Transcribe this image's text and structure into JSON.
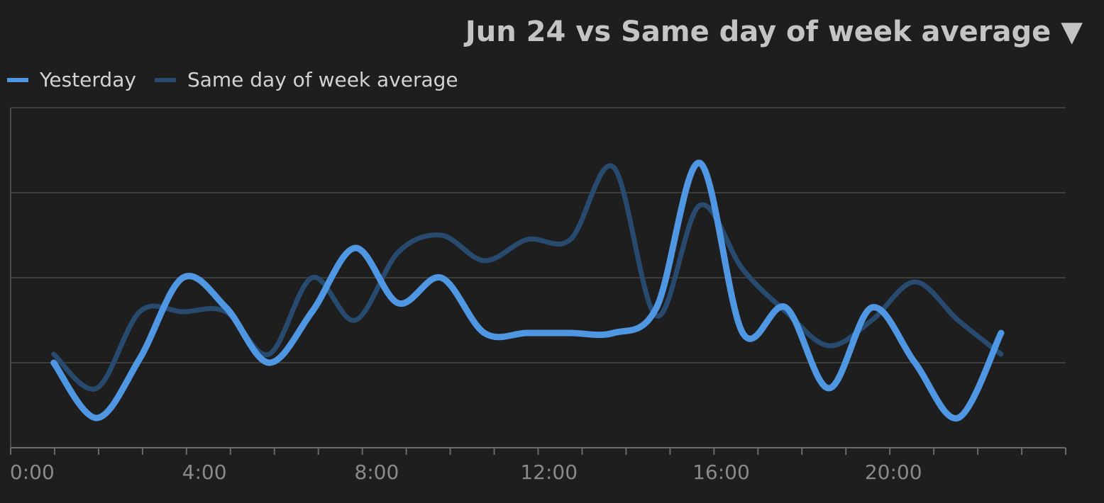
{
  "header": {
    "title": "Jun 24 vs Same day of week average",
    "dropdown_icon": "▼"
  },
  "legend": [
    {
      "label": "Yesterday",
      "color": "#4f97e2"
    },
    {
      "label": "Same day of week average",
      "color": "#284a6e"
    }
  ],
  "chart_data": {
    "type": "line",
    "title": "Jun 24 vs Same day of week average",
    "xlabel": "",
    "ylabel": "",
    "x": [
      0.5,
      1.5,
      2.5,
      3.5,
      4.5,
      5.5,
      6.5,
      7.5,
      8.5,
      9.5,
      10.5,
      11.5,
      12.5,
      13.5,
      14.5,
      15.5,
      16.5,
      17.5,
      18.5,
      19.5,
      20.5,
      21.5,
      22.5
    ],
    "x_ticks": [
      0,
      4,
      8,
      12,
      16,
      20
    ],
    "x_tick_labels": [
      "0:00",
      "4:00",
      "8:00",
      "12:00",
      "16:00",
      "20:00"
    ],
    "xlim": [
      -0.5,
      24
    ],
    "ylim": [
      0,
      4
    ],
    "grid": true,
    "series": [
      {
        "name": "Yesterday",
        "color": "#4f97e2",
        "values": [
          1.0,
          0.35,
          1.05,
          2.0,
          1.65,
          1.0,
          1.6,
          2.35,
          1.7,
          2.0,
          1.35,
          1.35,
          1.35,
          1.35,
          1.65,
          3.35,
          1.35,
          1.65,
          0.7,
          1.65,
          1.0,
          0.35,
          1.35
        ]
      },
      {
        "name": "Same day of week average",
        "color": "#284a6e",
        "values": [
          1.1,
          0.7,
          1.6,
          1.6,
          1.6,
          1.1,
          2.0,
          1.5,
          2.3,
          2.5,
          2.2,
          2.45,
          2.45,
          3.3,
          1.55,
          2.85,
          2.1,
          1.6,
          1.2,
          1.5,
          1.95,
          1.5,
          1.1
        ]
      }
    ]
  }
}
